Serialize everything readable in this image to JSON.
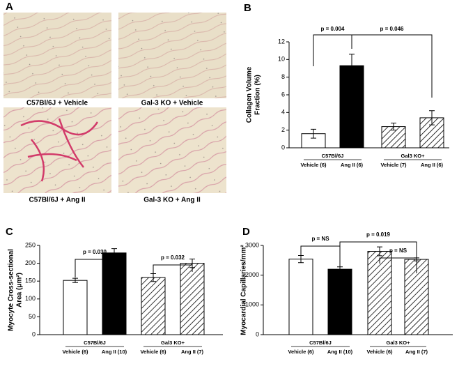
{
  "panel_a": {
    "letter": "A",
    "captions": [
      "C57Bl/6J + Vehicle",
      "Gal-3 KO + Vehicle",
      "C57Bl/6J + Ang II",
      "Gal-3 KO + Ang II"
    ]
  },
  "chart_data": [
    {
      "type": "bar",
      "panel": "B",
      "ylabel": [
        "Collagen Volume",
        "Fraction (%)"
      ],
      "categories": [
        "Vehicle (6)",
        "Ang II (6)",
        "Vehicle (7)",
        "Ang II (6)"
      ],
      "groups": [
        "C57Bl/6J",
        "Gal3 KO+"
      ],
      "values": [
        1.6,
        9.3,
        2.4,
        3.4
      ],
      "errors": [
        0.5,
        1.3,
        0.4,
        0.8
      ],
      "fills": [
        "white",
        "black",
        "hatch",
        "hatch"
      ],
      "ylim": [
        0,
        12
      ],
      "yticks": [
        0,
        2,
        4,
        6,
        8,
        10,
        12
      ],
      "annotations": [
        "p = 0.004",
        "p = 0.046"
      ]
    },
    {
      "type": "bar",
      "panel": "C",
      "ylabel": [
        "Myocyte Cross-sectional",
        "Area (μm²)"
      ],
      "categories": [
        "Vehicle (6)",
        "Ang II (10)",
        "Vehicle (6)",
        "Ang II (7)"
      ],
      "groups": [
        "C57Bl/6J",
        "Gal3 KO+"
      ],
      "values": [
        152,
        229,
        160,
        200
      ],
      "errors": [
        6,
        12,
        11,
        12
      ],
      "fills": [
        "white",
        "black",
        "hatch",
        "hatch"
      ],
      "ylim": [
        0,
        250
      ],
      "yticks": [
        0,
        50,
        100,
        150,
        200,
        250
      ],
      "annotations": [
        "p = 0.030",
        "p = 0.032"
      ]
    },
    {
      "type": "bar",
      "panel": "D",
      "ylabel": [
        "Myocardial Capillaries/mm²"
      ],
      "categories": [
        "Vehicle (6)",
        "Ang II (10)",
        "Vehicle (6)",
        "Ang II (7)"
      ],
      "groups": [
        "C57Bl/6J",
        "Gal3 KO+"
      ],
      "values": [
        2540,
        2200,
        2800,
        2530
      ],
      "errors": [
        120,
        80,
        150,
        50
      ],
      "fills": [
        "white",
        "black",
        "hatch",
        "hatch"
      ],
      "ylim": [
        0,
        3000
      ],
      "yticks": [
        0,
        1000,
        2000,
        3000
      ],
      "annotations": [
        "p = NS",
        "p = 0.019",
        "p = NS"
      ]
    }
  ]
}
